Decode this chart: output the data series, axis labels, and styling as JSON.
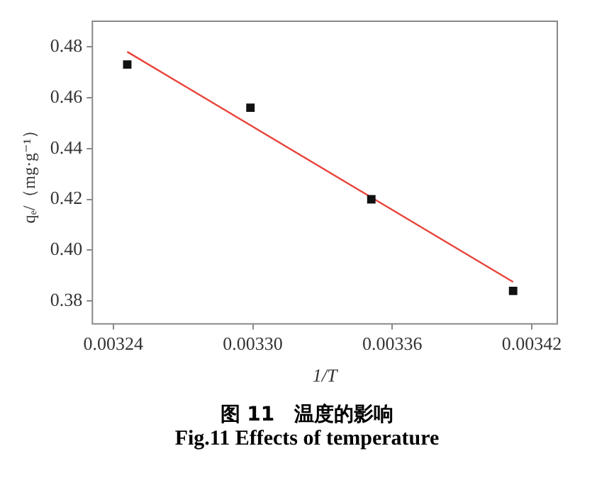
{
  "chart_data": {
    "type": "scatter",
    "title": "图 11　温度的影响",
    "subtitle": "Fig.11 Effects of temperature",
    "xlabel": "1/T",
    "ylabel": "qₑ/（mg·g⁻¹）",
    "xlim": [
      0.003231,
      0.003431
    ],
    "xticks": [
      0.00324,
      {
        "value": 0.0033,
        "label": "0.00330"
      },
      0.00336,
      0.00342
    ],
    "ylim": [
      0.371,
      0.49
    ],
    "yticks": [
      0.38,
      {
        "value": 0.4,
        "label": "0.40"
      },
      0.42,
      0.44,
      0.46,
      0.48
    ],
    "grid": false,
    "legend": false,
    "marker": "square",
    "series": [
      {
        "color": "#111111",
        "x": [
          0.003246,
          0.003299,
          0.003351,
          0.003412
        ],
        "values": [
          0.473,
          0.456,
          0.42,
          0.384
        ]
      },
      {
        "type": "line",
        "color": "#e8433a",
        "marker": "none",
        "line_style": "solid",
        "x": [
          0.003246,
          0.003412
        ],
        "values": [
          0.478,
          0.3875
        ]
      }
    ]
  }
}
